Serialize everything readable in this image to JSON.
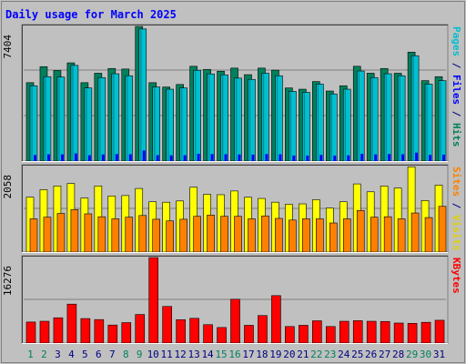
{
  "chart_data": {
    "type": "bar",
    "title": "Daily usage for March 2025",
    "x": [
      "1",
      "2",
      "3",
      "4",
      "5",
      "6",
      "7",
      "8",
      "9",
      "10",
      "11",
      "12",
      "13",
      "14",
      "15",
      "16",
      "17",
      "18",
      "19",
      "20",
      "21",
      "22",
      "23",
      "24",
      "25",
      "26",
      "27",
      "28",
      "29",
      "30",
      "31"
    ],
    "weekend_days": [
      "1",
      "2",
      "8",
      "9",
      "15",
      "16",
      "22",
      "23",
      "29",
      "30"
    ],
    "panels": [
      {
        "id": "hits-files-pages",
        "max_label": "7404",
        "ymax": 7404,
        "series": [
          {
            "name": "Hits",
            "color": "#00805c",
            "values": [
              4310,
              5190,
              4980,
              5400,
              4310,
              4830,
              5090,
              5060,
              7400,
              4310,
              4070,
              4210,
              5210,
              5040,
              4940,
              5110,
              4750,
              5110,
              5000,
              4020,
              3950,
              4370,
              3850,
              4140,
              5210,
              4830,
              5090,
              4830,
              5990,
              4420,
              4640
            ]
          },
          {
            "name": "Files",
            "color": "#00c0d0",
            "values": [
              4140,
              4640,
              4620,
              5260,
              4020,
              4590,
              4800,
              4690,
              7260,
              4070,
              3950,
              4020,
              4990,
              4790,
              4740,
              4560,
              4490,
              4830,
              4690,
              3830,
              3780,
              4230,
              3690,
              3950,
              4950,
              4590,
              4800,
              4690,
              5790,
              4230,
              4420
            ]
          },
          {
            "name": "Pages",
            "color": "#00e0ff",
            "values": [
              4140,
              4640,
              4620,
              5260,
              4020,
              4590,
              4800,
              4690,
              7260,
              4070,
              3950,
              4020,
              4990,
              4790,
              4740,
              4560,
              4490,
              4830,
              4690,
              3830,
              3780,
              4230,
              3690,
              3950,
              4950,
              4590,
              4800,
              4690,
              5790,
              4230,
              4420
            ]
          }
        ]
      },
      {
        "id": "visits-sites",
        "max_label": "2058",
        "ymax": 2058,
        "series": [
          {
            "name": "Visits",
            "color": "#ffff00",
            "values": [
              1320,
              1500,
              1590,
              1650,
              1300,
              1590,
              1350,
              1360,
              1530,
              1210,
              1200,
              1230,
              1560,
              1390,
              1380,
              1470,
              1320,
              1290,
              1200,
              1150,
              1160,
              1260,
              1060,
              1210,
              1640,
              1450,
              1590,
              1540,
              2050,
              1240,
              1610
            ]
          },
          {
            "name": "Sites",
            "color": "#ff8000",
            "values": [
              800,
              840,
              930,
              1020,
              920,
              850,
              800,
              840,
              880,
              790,
              750,
              790,
              860,
              890,
              860,
              860,
              800,
              870,
              810,
              770,
              800,
              800,
              700,
              800,
              1000,
              840,
              850,
              800,
              940,
              830,
              1100
            ]
          }
        ]
      },
      {
        "id": "kbytes",
        "max_label": "16276",
        "ymax": 16276,
        "series": [
          {
            "name": "KBytes",
            "color": "#ff0000",
            "values": [
              4000,
              4150,
              4810,
              7410,
              4660,
              4470,
              3430,
              3890,
              5440,
              16270,
              6970,
              4450,
              4710,
              3500,
              2960,
              8340,
              3380,
              5240,
              9030,
              3150,
              3380,
              4240,
              3150,
              4150,
              4260,
              4150,
              4110,
              3810,
              3750,
              3950,
              4340
            ]
          }
        ]
      }
    ],
    "right_labels": [
      {
        "panel": 0,
        "parts": [
          {
            "text": "Pages",
            "color": "#00c0d0"
          },
          {
            "text": " / ",
            "color": "#000080"
          },
          {
            "text": "Files",
            "color": "#0000ff"
          },
          {
            "text": " / ",
            "color": "#000080"
          },
          {
            "text": "Hits",
            "color": "#00805c"
          }
        ]
      },
      {
        "panel": 1,
        "parts": [
          {
            "text": "Sites",
            "color": "#ff8000"
          },
          {
            "text": " / ",
            "color": "#000080"
          },
          {
            "text": "Visits",
            "color": "#e0d000"
          }
        ]
      },
      {
        "panel": 2,
        "parts": [
          {
            "text": "KBytes",
            "color": "#ff0000"
          }
        ]
      }
    ],
    "colors": {
      "background": "#c0c0c0",
      "title": "#0000ff",
      "day_label": "#000080",
      "weekend_label": "#00805c",
      "gridline": "#808080",
      "panel_bg": "#c0c0c0"
    }
  }
}
